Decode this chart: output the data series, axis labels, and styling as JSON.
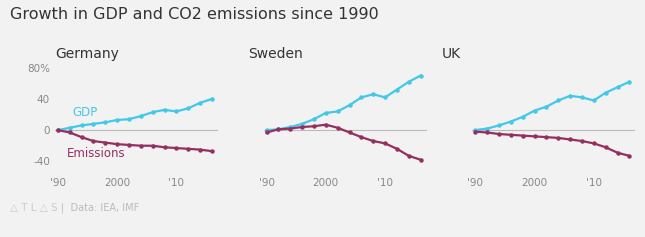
{
  "title": "Growth in GDP and CO2 emissions since 1990",
  "countries": [
    "Germany",
    "Sweden",
    "UK"
  ],
  "years": [
    1990,
    1992,
    1994,
    1996,
    1998,
    2000,
    2002,
    2004,
    2006,
    2008,
    2010,
    2012,
    2014,
    2016
  ],
  "gdp": {
    "Germany": [
      0,
      3,
      6,
      8,
      10,
      13,
      14,
      18,
      23,
      26,
      24,
      28,
      35,
      40
    ],
    "Sweden": [
      0,
      1,
      4,
      8,
      14,
      22,
      24,
      32,
      42,
      46,
      42,
      52,
      62,
      70
    ],
    "UK": [
      0,
      2,
      6,
      11,
      17,
      25,
      30,
      38,
      44,
      42,
      38,
      48,
      55,
      62
    ]
  },
  "emissions": {
    "Germany": [
      0,
      -3,
      -9,
      -14,
      -16,
      -18,
      -19,
      -20,
      -20,
      -22,
      -23,
      -24,
      -25,
      -27
    ],
    "Sweden": [
      -3,
      1,
      2,
      4,
      5,
      7,
      3,
      -3,
      -9,
      -14,
      -17,
      -24,
      -33,
      -38
    ],
    "UK": [
      -2,
      -3,
      -5,
      -6,
      -7,
      -8,
      -9,
      -10,
      -12,
      -14,
      -17,
      -22,
      -29,
      -33
    ]
  },
  "gdp_color": "#44C8E8",
  "emissions_color": "#943060",
  "background_color": "#F2F2F2",
  "ylabel_ticks": [
    -40,
    0,
    40,
    80
  ],
  "ylabel_labels": [
    "-40",
    "0",
    "40",
    "80%"
  ],
  "xtick_labels": [
    "'90",
    "2000",
    "'10"
  ],
  "xtick_positions": [
    1990,
    2000,
    2010
  ],
  "ylim": [
    -55,
    100
  ],
  "source_text": "Data: IEA, IMF",
  "gdp_label": "GDP",
  "emissions_label": "Emissions"
}
